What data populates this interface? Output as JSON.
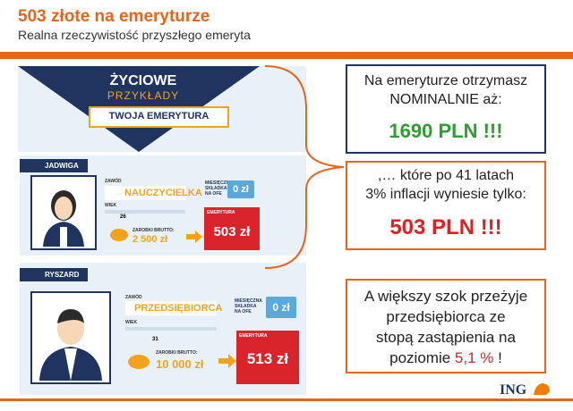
{
  "header": {
    "title": "503 złote na emeryturze",
    "subtitle": "Realna rzeczywistość przyszłego emeryta"
  },
  "banner": {
    "line1": "ŻYCIOWE",
    "line2": "PRZYKŁADY",
    "ribbon": "TWOJA EMERYTURA"
  },
  "people": [
    {
      "name": "JADWIGA",
      "job_label": "ZAWÓD",
      "job": "NAUCZYCIELKA",
      "age_label": "WIEK",
      "age": "26",
      "salary_label": "ZAROBKI BRUTTO:",
      "salary": "2 500 zł",
      "ofe_label": [
        "MIESIĘCZNA",
        "SKŁADKA",
        "NA OFE"
      ],
      "ofe": "0 zł",
      "pension_label": "EMERYTURA",
      "pension": "503 zł"
    },
    {
      "name": "RYSZARD",
      "job_label": "ZAWÓD",
      "job": "PRZEDSIĘBIORCA",
      "age_label": "WIEK",
      "age": "31",
      "salary_label": "ZAROBKI BRUTTO:",
      "salary": "10 000 zł",
      "ofe_label": [
        "MIESIĘCZNA",
        "SKŁADKA",
        "NA OFE"
      ],
      "ofe": "0 zł",
      "pension_label": "EMERYTURA",
      "pension": "513 zł"
    }
  ],
  "boxes": [
    {
      "lines": [
        "Na emeryturze otrzymasz",
        "NOMINALNIE aż:"
      ],
      "highlight": "1690 PLN !!!"
    },
    {
      "lines": [
        ",… które po 41 latach",
        "3% inflacji wyniesie tylko:"
      ],
      "highlight": "503 PLN !!!"
    },
    {
      "lines": [
        "A większy szok przeżyje",
        "przedsiębiorca ze",
        "stopą zastąpienia na"
      ],
      "last_line": [
        "poziomie ",
        "5,1 %",
        " !"
      ]
    }
  ],
  "logo": "ING"
}
